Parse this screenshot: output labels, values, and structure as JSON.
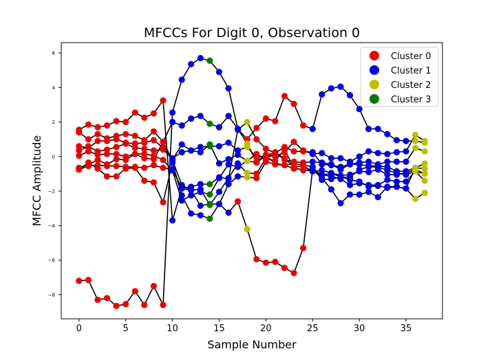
{
  "chart_data": {
    "type": "scatter",
    "title": "MFCCs For Digit 0, Observation 0",
    "xlabel": "Sample Number",
    "ylabel": "MFCC Amplitude",
    "xlim": [
      -1.9,
      38.9
    ],
    "ylim": [
      -9.4,
      6.6
    ],
    "xticks": [
      0,
      5,
      10,
      15,
      20,
      25,
      30,
      35
    ],
    "yticks": [
      -8,
      -6,
      -4,
      -2,
      0,
      2,
      4,
      6
    ],
    "grid": false,
    "legend_position": "top-right",
    "clusters": [
      {
        "name": "Cluster 0",
        "color": "#ee0000"
      },
      {
        "name": "Cluster 1",
        "color": "#0000ee"
      },
      {
        "name": "Cluster 2",
        "color": "#bfbf00"
      },
      {
        "name": "Cluster 3",
        "color": "#007a00"
      }
    ],
    "series": [
      {
        "values": [
          -7.2,
          -7.15,
          -8.3,
          -8.2,
          -8.65,
          -8.55,
          -7.8,
          -8.6,
          -7.5,
          -8.6,
          2.55,
          4.45,
          5.35,
          5.7,
          5.55,
          4.9,
          3.95,
          1.6,
          1.0,
          1.65,
          2.2,
          2.05,
          3.5,
          3.05,
          1.8,
          1.6,
          3.6,
          3.95,
          4.05,
          3.55,
          2.75,
          1.6,
          1.6,
          1.3,
          0.95,
          0.9,
          0.9,
          0.8
        ],
        "clusters": [
          0,
          0,
          0,
          0,
          0,
          0,
          0,
          0,
          0,
          0,
          1,
          1,
          1,
          1,
          3,
          1,
          1,
          1,
          0,
          0,
          0,
          0,
          0,
          0,
          0,
          1,
          1,
          1,
          1,
          1,
          1,
          1,
          1,
          1,
          1,
          1,
          2,
          2
        ]
      },
      {
        "values": [
          1.55,
          1.85,
          1.7,
          1.8,
          2.05,
          2.0,
          2.55,
          2.25,
          2.5,
          3.25,
          -3.7,
          -1.85,
          -1.75,
          -1.6,
          -1.6,
          -1.2,
          -1.3,
          1.55,
          2.0,
          1.0,
          0.45,
          0.2,
          0.55,
          0.3,
          0.3,
          0.25,
          -0.45,
          -0.5,
          -0.6,
          -0.45,
          -0.45,
          -0.55,
          -0.55,
          -0.6,
          -0.85,
          -0.85,
          -0.65,
          -0.7
        ],
        "clusters": [
          0,
          0,
          0,
          0,
          0,
          0,
          0,
          0,
          0,
          0,
          1,
          1,
          1,
          1,
          3,
          1,
          1,
          1,
          2,
          0,
          0,
          0,
          0,
          0,
          0,
          1,
          1,
          1,
          1,
          1,
          1,
          1,
          1,
          1,
          1,
          1,
          1,
          2
        ]
      },
      {
        "values": [
          1.4,
          1.0,
          1.3,
          1.05,
          1.2,
          1.3,
          1.2,
          0.95,
          1.45,
          0.85,
          2.0,
          1.8,
          2.2,
          2.35,
          1.9,
          1.7,
          2.35,
          1.6,
          0.75,
          -0.3,
          0.1,
          0.0,
          0.25,
          0.85,
          0.35,
          0.15,
          0.2,
          -0.1,
          -0.1,
          -0.3,
          0.0,
          0.3,
          0.2,
          0.15,
          0.25,
          0.3,
          1.25,
          0.9
        ],
        "clusters": [
          0,
          0,
          0,
          0,
          0,
          0,
          0,
          0,
          0,
          0,
          1,
          1,
          1,
          1,
          3,
          1,
          1,
          1,
          2,
          0,
          0,
          0,
          0,
          0,
          0,
          1,
          1,
          1,
          1,
          1,
          1,
          1,
          1,
          1,
          1,
          1,
          2,
          2
        ]
      },
      {
        "values": [
          0.6,
          0.5,
          0.9,
          0.9,
          1.0,
          0.8,
          0.75,
          0.8,
          0.95,
          0.5,
          -0.2,
          0.7,
          0.35,
          0.55,
          0.6,
          0.6,
          0.8,
          0.35,
          0.55,
          -0.05,
          0.05,
          0.25,
          -0.2,
          -0.3,
          -0.35,
          -0.3,
          -0.35,
          -0.45,
          -0.75,
          -0.45,
          -0.35,
          -0.3,
          -0.45,
          -0.3,
          -0.3,
          -0.3,
          0.5,
          0.3
        ],
        "clusters": [
          0,
          0,
          0,
          0,
          0,
          0,
          0,
          0,
          0,
          0,
          1,
          1,
          1,
          1,
          3,
          1,
          1,
          1,
          2,
          0,
          0,
          0,
          0,
          0,
          0,
          1,
          1,
          1,
          1,
          1,
          1,
          1,
          1,
          1,
          1,
          1,
          2,
          2
        ]
      },
      {
        "values": [
          0.35,
          0.6,
          0.3,
          0.4,
          0.55,
          0.75,
          0.5,
          0.45,
          0.35,
          0.4,
          -0.1,
          0.25,
          0.35,
          0.25,
          0.7,
          -0.4,
          -0.15,
          0.1,
          -0.25,
          0.15,
          -0.15,
          0.2,
          -0.1,
          -0.6,
          -0.55,
          -0.85,
          -0.8,
          -0.95,
          -1.1,
          -1.05,
          -0.85,
          -0.9,
          -0.75,
          -1.05,
          -1.05,
          -0.95,
          -0.75,
          -1.0
        ],
        "clusters": [
          0,
          0,
          0,
          0,
          0,
          0,
          0,
          0,
          0,
          0,
          1,
          1,
          1,
          1,
          3,
          1,
          1,
          1,
          2,
          0,
          0,
          0,
          0,
          0,
          0,
          1,
          1,
          1,
          1,
          1,
          1,
          1,
          1,
          1,
          1,
          1,
          2,
          2
        ]
      },
      {
        "values": [
          0.05,
          0.3,
          0.1,
          0.15,
          0.15,
          0.0,
          0.15,
          0.15,
          0.05,
          -0.2,
          -0.8,
          -2.55,
          -2.25,
          -2.05,
          -2.2,
          -1.25,
          -0.45,
          -0.6,
          -0.25,
          -0.35,
          0.05,
          -0.4,
          -0.5,
          -0.4,
          -0.5,
          -0.6,
          -1.35,
          -1.3,
          -1.2,
          -1.2,
          -0.75,
          -0.6,
          -0.6,
          -0.8,
          -0.95,
          -1.05,
          -0.85,
          -1.0
        ],
        "clusters": [
          0,
          0,
          0,
          0,
          0,
          0,
          0,
          0,
          0,
          0,
          1,
          1,
          1,
          1,
          3,
          1,
          1,
          1,
          2,
          0,
          0,
          0,
          0,
          0,
          0,
          1,
          1,
          1,
          1,
          1,
          1,
          1,
          1,
          1,
          1,
          1,
          2,
          2
        ]
      },
      {
        "values": [
          -0.75,
          -0.35,
          -0.7,
          -1.15,
          -1.15,
          -0.7,
          -0.65,
          -1.4,
          -1.5,
          -2.65,
          -0.35,
          -2.25,
          -3.3,
          -3.4,
          -3.6,
          -2.75,
          -3.25,
          -2.6,
          -4.2,
          -5.95,
          -6.15,
          -6.1,
          -6.45,
          -6.75,
          -5.3,
          -0.75,
          -1.05,
          -1.0,
          -1.15,
          -1.35,
          -1.45,
          -1.75,
          -1.7,
          -1.8,
          -1.75,
          -1.85,
          -2.45,
          -2.1
        ],
        "clusters": [
          0,
          0,
          0,
          0,
          0,
          0,
          0,
          0,
          0,
          0,
          1,
          1,
          1,
          1,
          3,
          1,
          1,
          0,
          2,
          0,
          0,
          0,
          0,
          0,
          0,
          1,
          1,
          1,
          1,
          1,
          1,
          1,
          1,
          1,
          1,
          1,
          2,
          2
        ]
      },
      {
        "values": [
          -0.65,
          -0.45,
          -0.2,
          -0.45,
          -0.15,
          -0.2,
          0.15,
          -0.1,
          -0.15,
          0.85,
          -0.2,
          -1.65,
          -1.95,
          -1.9,
          -2.8,
          -2.05,
          -1.25,
          -0.4,
          -0.95,
          -1.0,
          -0.1,
          -0.25,
          0.4,
          -0.65,
          -0.8,
          -0.75,
          -1.25,
          -1.9,
          -2.7,
          -2.2,
          -2.2,
          -2.05,
          -2.35,
          -1.75,
          -1.75,
          -1.85,
          -0.65,
          -0.4
        ],
        "clusters": [
          0,
          0,
          0,
          0,
          0,
          0,
          0,
          0,
          0,
          0,
          1,
          1,
          1,
          1,
          3,
          1,
          1,
          1,
          2,
          0,
          0,
          0,
          0,
          0,
          0,
          1,
          1,
          1,
          1,
          1,
          1,
          1,
          1,
          1,
          1,
          1,
          2,
          2
        ]
      },
      {
        "values": [
          -0.75,
          -0.55,
          -0.5,
          -0.55,
          -0.55,
          -0.6,
          -0.6,
          -0.65,
          -0.5,
          -0.65,
          -0.75,
          -1.85,
          -1.95,
          -2.85,
          -2.75,
          -2.75,
          -1.6,
          -1.15,
          -1.2,
          -1.25,
          -0.3,
          -0.45,
          -0.5,
          -0.7,
          -0.75,
          -0.85,
          -1.05,
          -1.15,
          -1.3,
          -1.65,
          -1.55,
          -1.65,
          -1.65,
          -1.35,
          -1.45,
          -1.45,
          -0.85,
          -1.4
        ],
        "clusters": [
          0,
          0,
          0,
          0,
          0,
          0,
          0,
          0,
          0,
          0,
          1,
          1,
          1,
          1,
          3,
          1,
          1,
          1,
          2,
          0,
          0,
          0,
          0,
          0,
          0,
          1,
          1,
          1,
          1,
          1,
          1,
          1,
          1,
          1,
          1,
          1,
          2,
          2
        ]
      }
    ]
  }
}
